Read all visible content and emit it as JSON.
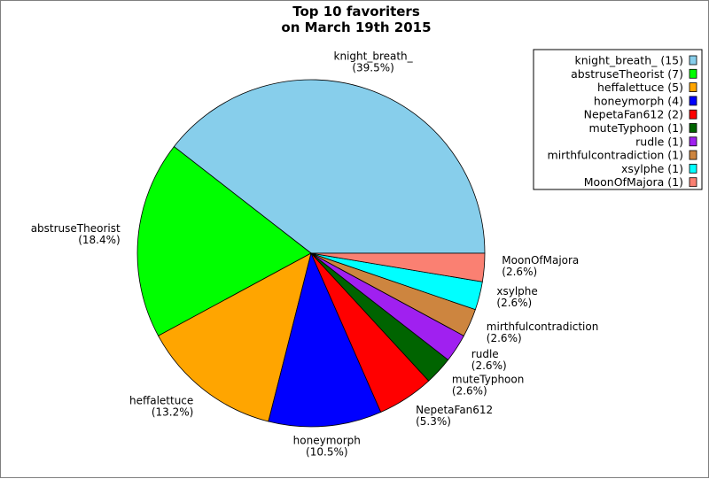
{
  "chart_data": {
    "type": "pie",
    "title": [
      "Top 10 favoriters",
      "on March 19th 2015"
    ],
    "slices": [
      {
        "name": "knight_breath_",
        "value": 15,
        "percent": "(39.5%)",
        "legend": "knight_breath_ (15)",
        "color": "#87ceeb"
      },
      {
        "name": "abstruseTheorist",
        "value": 7,
        "percent": "(18.4%)",
        "legend": "abstruseTheorist (7)",
        "color": "#00ff00"
      },
      {
        "name": "heffalettuce",
        "value": 5,
        "percent": "(13.2%)",
        "legend": "heffalettuce (5)",
        "color": "#ffa500"
      },
      {
        "name": "honeymorph",
        "value": 4,
        "percent": "(10.5%)",
        "legend": "honeymorph (4)",
        "color": "#0000ff"
      },
      {
        "name": "NepetaFan612",
        "value": 2,
        "percent": "(5.3%)",
        "legend": "NepetaFan612 (2)",
        "color": "#ff0000"
      },
      {
        "name": "muteTyphoon",
        "value": 1,
        "percent": "(2.6%)",
        "legend": "muteTyphoon (1)",
        "color": "#006400"
      },
      {
        "name": "rudle",
        "value": 1,
        "percent": "(2.6%)",
        "legend": "rudle (1)",
        "color": "#a020f0"
      },
      {
        "name": "mirthfulcontradiction",
        "value": 1,
        "percent": "(2.6%)",
        "legend": "mirthfulcontradiction (1)",
        "color": "#cd853f"
      },
      {
        "name": "xsylphe",
        "value": 1,
        "percent": "(2.6%)",
        "legend": "xsylphe (1)",
        "color": "#00ffff"
      },
      {
        "name": "MoonOfMajora",
        "value": 1,
        "percent": "(2.6%)",
        "legend": "MoonOfMajora (1)",
        "color": "#fa8072"
      }
    ],
    "legend_position": "top-right"
  }
}
